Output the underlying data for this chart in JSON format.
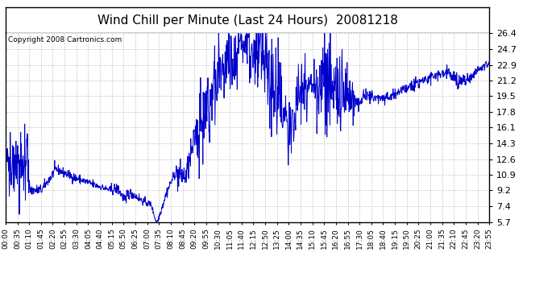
{
  "title": "Wind Chill per Minute (Last 24 Hours)  20081218",
  "copyright_text": "Copyright 2008 Cartronics.com",
  "line_color": "#0000cc",
  "bg_color": "#ffffff",
  "grid_color": "#c8c8c8",
  "yticks": [
    5.7,
    7.4,
    9.2,
    10.9,
    12.6,
    14.3,
    16.1,
    17.8,
    19.5,
    21.2,
    22.9,
    24.7,
    26.4
  ],
  "ymin": 5.7,
  "ymax": 26.4,
  "xtick_labels": [
    "00:00",
    "00:35",
    "01:10",
    "01:45",
    "02:20",
    "02:55",
    "03:30",
    "04:05",
    "04:40",
    "05:15",
    "05:50",
    "06:25",
    "07:00",
    "07:35",
    "08:10",
    "08:45",
    "09:20",
    "09:55",
    "10:30",
    "11:05",
    "11:40",
    "12:15",
    "12:50",
    "13:25",
    "14:00",
    "14:35",
    "15:10",
    "15:45",
    "16:20",
    "16:55",
    "17:30",
    "18:05",
    "18:40",
    "19:15",
    "19:50",
    "20:25",
    "21:00",
    "21:35",
    "22:10",
    "22:45",
    "23:20",
    "23:55"
  ],
  "title_fontsize": 11,
  "copyright_fontsize": 6.5,
  "tick_label_fontsize": 6.5,
  "ytick_label_fontsize": 8
}
